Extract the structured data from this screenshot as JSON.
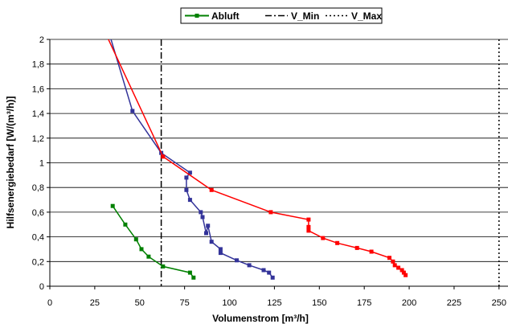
{
  "chart_data": {
    "type": "line",
    "xlabel": "Volumenstrom [m³/h]",
    "ylabel": "Hilfsenergiebedarf [W/(m³/h)]",
    "xlim": [
      0,
      255
    ],
    "ylim": [
      0,
      2
    ],
    "xticks": [
      0,
      25,
      50,
      75,
      100,
      125,
      150,
      175,
      200,
      225,
      250
    ],
    "yticks": [
      0,
      0.2,
      0.4,
      0.6,
      0.8,
      1,
      1.2,
      1.4,
      1.6,
      1.8,
      2
    ],
    "x_tick_labels": [
      "0",
      "25",
      "50",
      "75",
      "100",
      "125",
      "150",
      "175",
      "200",
      "225",
      "250"
    ],
    "y_tick_labels": [
      "0",
      "0,2",
      "0,4",
      "0,6",
      "0,8",
      "1",
      "1,2",
      "1,4",
      "1,6",
      "1,8",
      "2"
    ],
    "grid": "horizontal",
    "legend": {
      "position": "top-center",
      "entries": [
        {
          "name": "Abluft",
          "color": "#008000",
          "style": "solid-square"
        },
        {
          "name": "V_Min",
          "color": "#000000",
          "style": "dashdot"
        },
        {
          "name": "V_Max",
          "color": "#000000",
          "style": "dotted"
        }
      ]
    },
    "series": [
      {
        "name": "Abluft",
        "color": "#008000",
        "marker": "square",
        "x": [
          35,
          42,
          48,
          51,
          55,
          63,
          78,
          80
        ],
        "y": [
          0.65,
          0.5,
          0.38,
          0.3,
          0.24,
          0.16,
          0.11,
          0.07
        ]
      },
      {
        "name": "",
        "color": "#333399",
        "marker": "square",
        "x": [
          33,
          46,
          62,
          78,
          76,
          76,
          78,
          84,
          85,
          87,
          88,
          90,
          95,
          95,
          104,
          111,
          119,
          122,
          124
        ],
        "y": [
          2.05,
          1.42,
          1.08,
          0.92,
          0.88,
          0.78,
          0.7,
          0.6,
          0.56,
          0.43,
          0.49,
          0.36,
          0.3,
          0.27,
          0.21,
          0.17,
          0.13,
          0.11,
          0.07
        ]
      },
      {
        "name": "",
        "color": "#FF0000",
        "marker": "square",
        "x": [
          31,
          63,
          90,
          123,
          144,
          144,
          144,
          152,
          160,
          171,
          179,
          189,
          191,
          192,
          194,
          196,
          197,
          198
        ],
        "y": [
          2.05,
          1.05,
          0.78,
          0.6,
          0.54,
          0.48,
          0.45,
          0.39,
          0.35,
          0.31,
          0.28,
          0.23,
          0.2,
          0.17,
          0.15,
          0.13,
          0.11,
          0.09
        ]
      }
    ],
    "reference_lines": [
      {
        "name": "V_Min",
        "x": 62,
        "style": "dashdot"
      },
      {
        "name": "V_Max",
        "x": 250,
        "style": "dotted"
      }
    ]
  }
}
